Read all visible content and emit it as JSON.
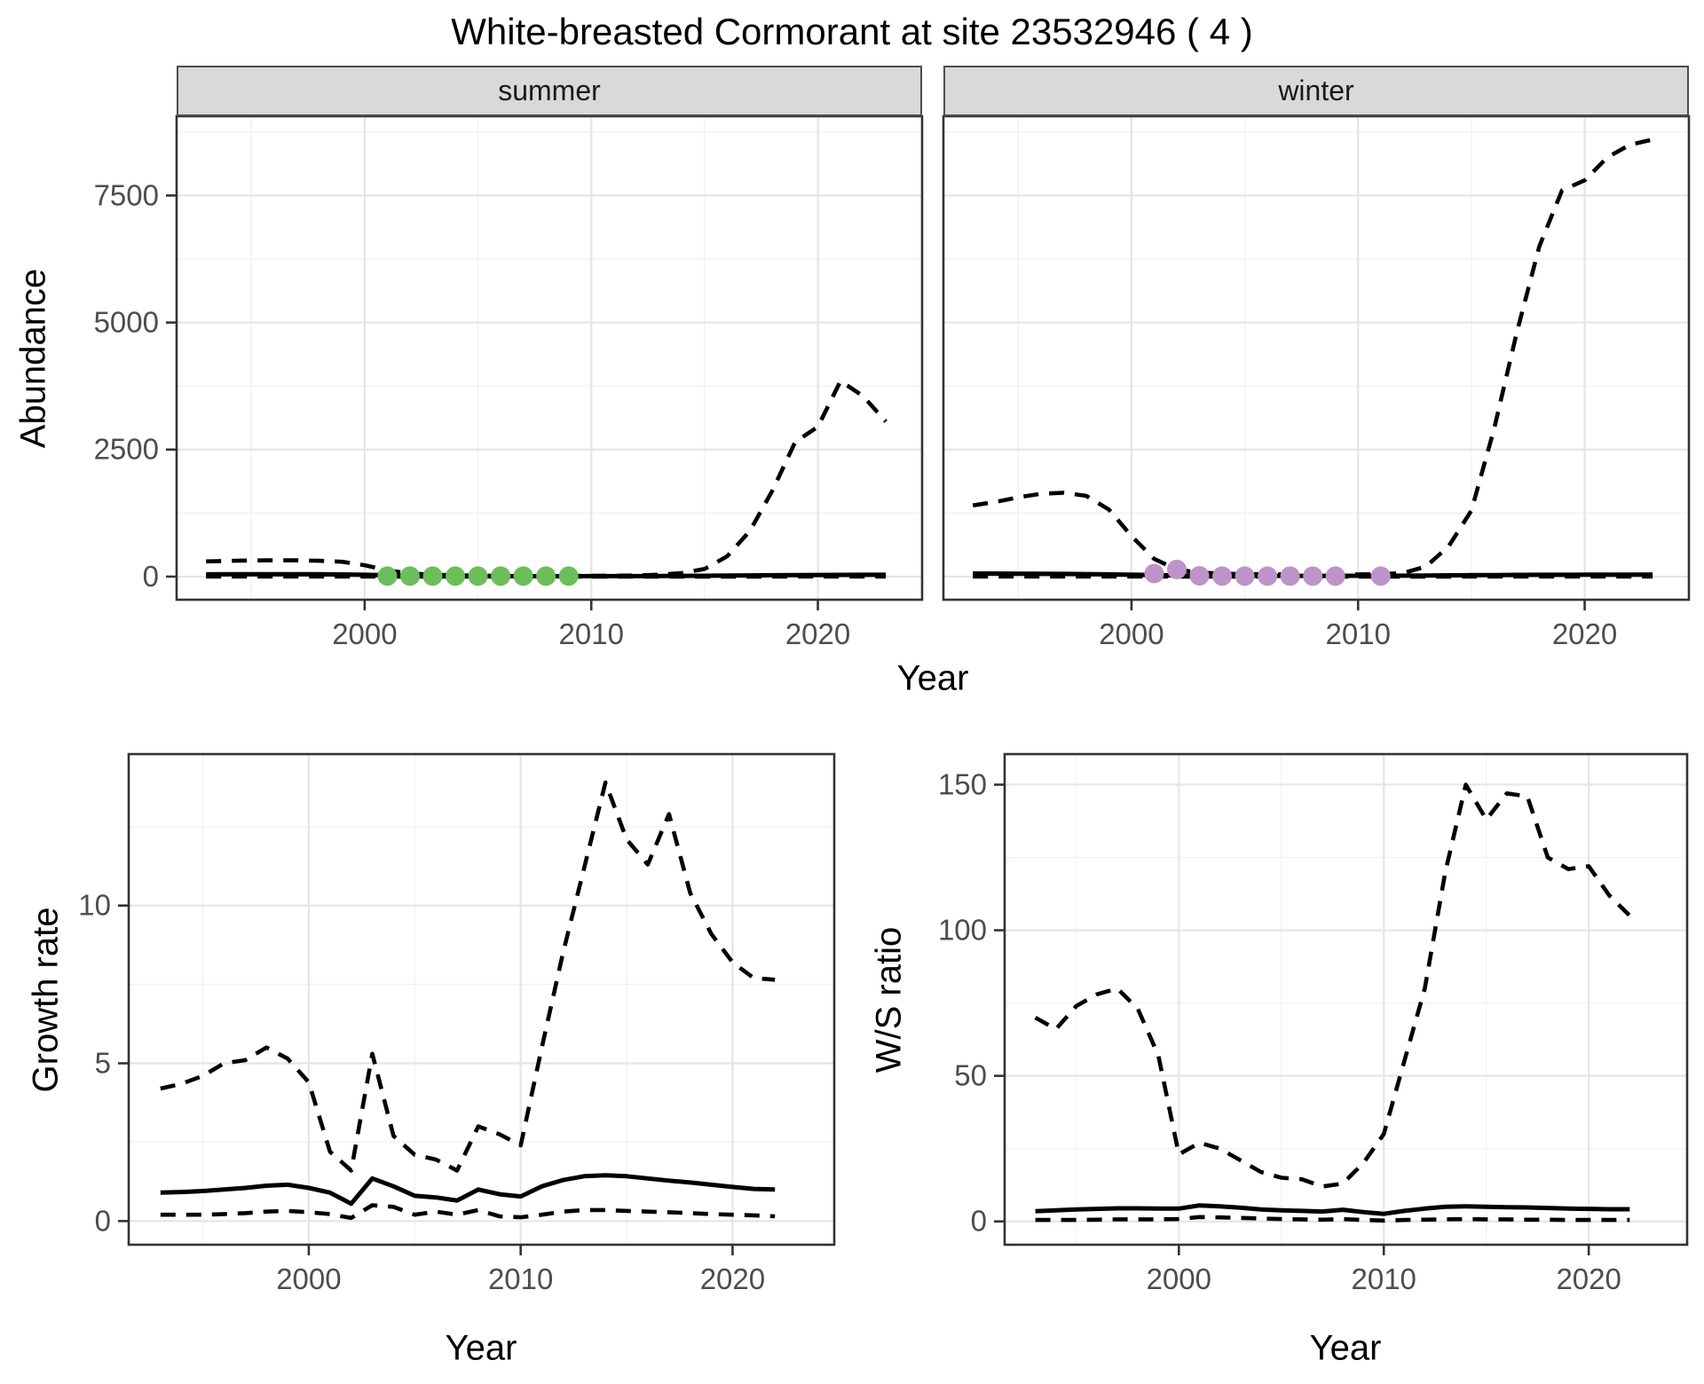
{
  "title": "White-breasted Cormorant at site 23532946 ( 4 )",
  "facets": {
    "summer": "summer",
    "winter": "winter"
  },
  "axis_titles": {
    "abundance": "Abundance",
    "year_top": "Year",
    "growth_rate": "Growth rate",
    "ws_ratio": "W/S ratio",
    "year_bottom_left": "Year",
    "year_bottom_right": "Year"
  },
  "colors": {
    "line": "#000000",
    "point_summer": "#6CBE5B",
    "point_winter": "#BE93C9",
    "strip_bg": "#D9D9D9",
    "grid_major": "#E5E5E5",
    "grid_minor": "#F2F2F2",
    "panel_border": "#333333",
    "tick_text": "#4D4D4D"
  },
  "chart_data": [
    {
      "id": "abundance_summer",
      "type": "line",
      "facet": "summer",
      "ylabel": "Abundance",
      "xlabel": "Year",
      "x": [
        1993,
        1994,
        1995,
        1996,
        1997,
        1998,
        1999,
        2000,
        2001,
        2002,
        2003,
        2004,
        2005,
        2006,
        2007,
        2008,
        2009,
        2010,
        2011,
        2012,
        2013,
        2014,
        2015,
        2016,
        2017,
        2018,
        2019,
        2020,
        2021,
        2022,
        2023
      ],
      "series": [
        {
          "name": "upper_ci",
          "style": "dashed",
          "values": [
            300,
            310,
            318,
            322,
            320,
            312,
            292,
            225,
            125,
            62,
            38,
            26,
            20,
            17,
            15,
            15,
            15,
            16,
            18,
            24,
            38,
            70,
            150,
            400,
            900,
            1700,
            2650,
            2950,
            3850,
            3550,
            3050
          ]
        },
        {
          "name": "median",
          "style": "solid",
          "values": [
            45,
            46,
            47,
            48,
            48,
            46,
            43,
            36,
            26,
            16,
            11,
            9,
            8,
            8,
            8,
            8,
            8,
            9,
            9,
            10,
            12,
            14,
            17,
            20,
            24,
            27,
            30,
            32,
            34,
            35,
            35
          ]
        },
        {
          "name": "lower_ci",
          "style": "dashed",
          "values": [
            2,
            2,
            2,
            2,
            2,
            2,
            2,
            2,
            1,
            1,
            0,
            0,
            0,
            0,
            0,
            0,
            0,
            0,
            0,
            0,
            0,
            0,
            0,
            1,
            1,
            1,
            2,
            2,
            2,
            2,
            2
          ]
        }
      ],
      "points": {
        "name": "summer_observations",
        "x": [
          2001,
          2002,
          2003,
          2004,
          2005,
          2006,
          2007,
          2008,
          2009
        ],
        "y": [
          10,
          10,
          10,
          10,
          10,
          10,
          10,
          10,
          10
        ],
        "color": "#6CBE5B"
      },
      "xlim": [
        1991.7,
        2024.6
      ],
      "ylim": [
        -455,
        9060
      ],
      "xticks": [
        2000,
        2010,
        2020
      ],
      "yticks": [
        0,
        2500,
        5000,
        7500
      ],
      "xminor": [
        1995,
        2005,
        2015
      ],
      "yminor": [
        1250,
        3750,
        6250,
        8750
      ],
      "show_ytick_labels": true
    },
    {
      "id": "abundance_winter",
      "type": "line",
      "facet": "winter",
      "ylabel": "Abundance",
      "xlabel": "Year",
      "x": [
        1993,
        1994,
        1995,
        1996,
        1997,
        1998,
        1999,
        2000,
        2001,
        2002,
        2003,
        2004,
        2005,
        2006,
        2007,
        2008,
        2009,
        2010,
        2011,
        2012,
        2013,
        2014,
        2015,
        2016,
        2017,
        2018,
        2019,
        2020,
        2021,
        2022,
        2023
      ],
      "series": [
        {
          "name": "upper_ci",
          "style": "dashed",
          "values": [
            1400,
            1470,
            1560,
            1630,
            1650,
            1590,
            1320,
            800,
            350,
            140,
            80,
            60,
            50,
            45,
            42,
            40,
            42,
            45,
            50,
            70,
            200,
            600,
            1300,
            2900,
            4800,
            6500,
            7600,
            7800,
            8250,
            8500,
            8600
          ]
        },
        {
          "name": "median",
          "style": "solid",
          "values": [
            60,
            60,
            58,
            56,
            53,
            50,
            45,
            38,
            30,
            24,
            20,
            18,
            16,
            15,
            15,
            15,
            15,
            16,
            17,
            19,
            22,
            25,
            28,
            31,
            33,
            35,
            36,
            37,
            38,
            39,
            40
          ]
        },
        {
          "name": "lower_ci",
          "style": "dashed",
          "values": [
            3,
            3,
            3,
            3,
            3,
            3,
            3,
            2,
            2,
            1,
            1,
            1,
            1,
            1,
            1,
            1,
            1,
            1,
            1,
            1,
            1,
            1,
            2,
            2,
            2,
            3,
            3,
            3,
            3,
            3,
            3
          ]
        }
      ],
      "points": {
        "name": "winter_observations",
        "x": [
          2001,
          2002,
          2003,
          2004,
          2005,
          2006,
          2007,
          2008,
          2009,
          2011
        ],
        "y": [
          60,
          140,
          15,
          10,
          10,
          10,
          10,
          10,
          10,
          10
        ],
        "color": "#BE93C9"
      },
      "xlim": [
        1991.7,
        2024.6
      ],
      "ylim": [
        -455,
        9060
      ],
      "xticks": [
        2000,
        2010,
        2020
      ],
      "yticks": [
        0,
        2500,
        5000,
        7500
      ],
      "xminor": [
        1995,
        2005,
        2015
      ],
      "yminor": [
        1250,
        3750,
        6250,
        8750
      ],
      "show_ytick_labels": false
    },
    {
      "id": "growth_rate",
      "type": "line",
      "ylabel": "Growth rate",
      "xlabel": "Year",
      "x": [
        1993,
        1994,
        1995,
        1996,
        1997,
        1998,
        1999,
        2000,
        2001,
        2002,
        2003,
        2004,
        2005,
        2006,
        2007,
        2008,
        2009,
        2010,
        2011,
        2012,
        2013,
        2014,
        2015,
        2016,
        2017,
        2018,
        2019,
        2020,
        2021,
        2022
      ],
      "series": [
        {
          "name": "upper_ci",
          "style": "dashed",
          "values": [
            4.2,
            4.35,
            4.6,
            5.0,
            5.1,
            5.5,
            5.15,
            4.4,
            2.2,
            1.6,
            5.3,
            2.7,
            2.1,
            1.95,
            1.6,
            3.0,
            2.75,
            2.4,
            5.5,
            8.5,
            11.2,
            13.9,
            12.1,
            11.3,
            12.9,
            10.4,
            9.1,
            8.2,
            7.7,
            7.65
          ]
        },
        {
          "name": "median",
          "style": "solid",
          "values": [
            0.9,
            0.92,
            0.95,
            1.0,
            1.05,
            1.12,
            1.15,
            1.05,
            0.9,
            0.55,
            1.35,
            1.1,
            0.8,
            0.75,
            0.65,
            1.0,
            0.85,
            0.78,
            1.1,
            1.3,
            1.42,
            1.45,
            1.42,
            1.35,
            1.28,
            1.22,
            1.15,
            1.08,
            1.02,
            1.0
          ]
        },
        {
          "name": "lower_ci",
          "style": "dashed",
          "values": [
            0.2,
            0.2,
            0.2,
            0.22,
            0.25,
            0.3,
            0.32,
            0.28,
            0.22,
            0.1,
            0.5,
            0.45,
            0.2,
            0.3,
            0.2,
            0.35,
            0.15,
            0.12,
            0.2,
            0.3,
            0.35,
            0.35,
            0.32,
            0.3,
            0.28,
            0.25,
            0.22,
            0.2,
            0.18,
            0.15
          ]
        }
      ],
      "xlim": [
        1991.5,
        2024.8
      ],
      "ylim": [
        -0.75,
        14.8
      ],
      "xticks": [
        2000,
        2010,
        2020
      ],
      "yticks": [
        0,
        5,
        10
      ],
      "xminor": [
        1995,
        2005,
        2015
      ],
      "yminor": [
        2.5,
        7.5,
        12.5
      ],
      "show_ytick_labels": true
    },
    {
      "id": "ws_ratio",
      "type": "line",
      "ylabel": "W/S ratio",
      "xlabel": "Year",
      "x": [
        1993,
        1994,
        1995,
        1996,
        1997,
        1998,
        1999,
        2000,
        2001,
        2002,
        2003,
        2004,
        2005,
        2006,
        2007,
        2008,
        2009,
        2010,
        2011,
        2012,
        2013,
        2014,
        2015,
        2016,
        2017,
        2018,
        2019,
        2020,
        2021,
        2022
      ],
      "series": [
        {
          "name": "upper_ci",
          "style": "dashed",
          "values": [
            70,
            66,
            74,
            78,
            80,
            73,
            57,
            23,
            27,
            25,
            21,
            17,
            15,
            14.5,
            12,
            13,
            20,
            30,
            55,
            80,
            120,
            150,
            138,
            147,
            146,
            125,
            121,
            122,
            112,
            105
          ]
        },
        {
          "name": "median",
          "style": "solid",
          "values": [
            3.5,
            3.8,
            4.1,
            4.3,
            4.5,
            4.5,
            4.4,
            4.4,
            5.5,
            5.2,
            4.7,
            4.1,
            3.8,
            3.6,
            3.4,
            4.0,
            3.2,
            2.6,
            3.6,
            4.4,
            5.0,
            5.2,
            5.0,
            4.9,
            4.8,
            4.6,
            4.4,
            4.3,
            4.2,
            4.2
          ]
        },
        {
          "name": "lower_ci",
          "style": "dashed",
          "values": [
            0.5,
            0.5,
            0.5,
            0.6,
            0.7,
            0.7,
            0.7,
            0.8,
            1.5,
            1.4,
            1.2,
            1.0,
            0.8,
            0.7,
            0.6,
            0.8,
            0.5,
            0.3,
            0.5,
            0.6,
            0.7,
            0.8,
            0.7,
            0.7,
            0.6,
            0.6,
            0.5,
            0.5,
            0.5,
            0.5
          ]
        }
      ],
      "xlim": [
        1991.5,
        2024.8
      ],
      "ylim": [
        -8,
        160.5
      ],
      "xticks": [
        2000,
        2010,
        2020
      ],
      "yticks": [
        0,
        50,
        100,
        150
      ],
      "xminor": [
        1995,
        2005,
        2015
      ],
      "yminor": [
        25,
        75,
        125
      ],
      "show_ytick_labels": true
    }
  ]
}
